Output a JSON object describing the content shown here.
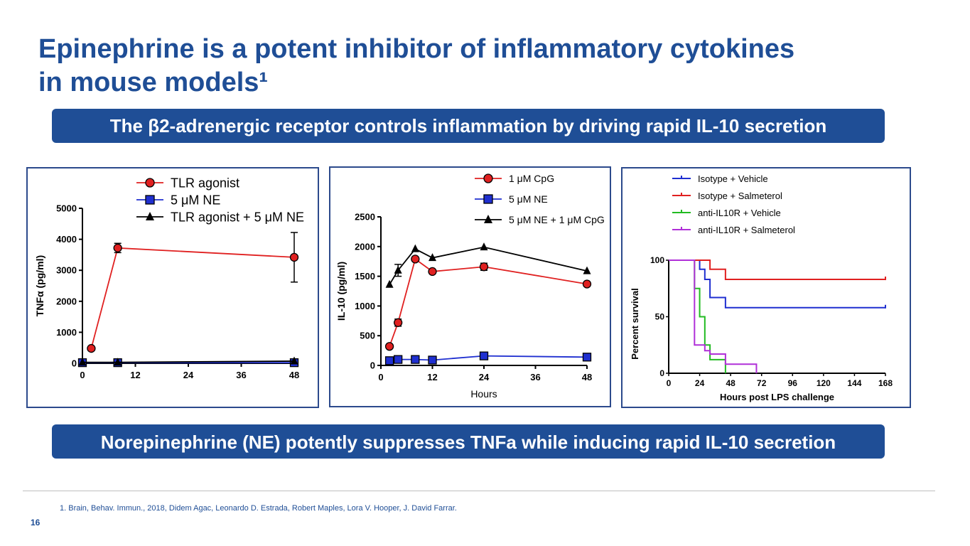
{
  "title_line1": "Epinephrine is a potent inhibitor of inflammatory cytokines",
  "title_line2": "in mouse models¹",
  "banner_top": "The β2-adrenergic receptor controls inflammation by driving rapid IL-10 secretion",
  "banner_bottom": "Norepinephrine (NE) potently suppresses TNFa while inducing rapid IL-10 secretion",
  "footnote": "1. Brain, Behav. Immun., 2018, Didem Agac, Leonardo D. Estrada, Robert Maples, Lora V. Hooper, J. David  Farrar.",
  "page_number": "16",
  "colors": {
    "brand": "#1f4e96",
    "red": "#e02020",
    "blue": "#1f2fd0",
    "black": "#000000",
    "green": "#22bb22",
    "purple": "#b030d8"
  },
  "chart_data": [
    {
      "type": "line",
      "title": "",
      "xlabel": "",
      "ylabel": "TNFα (pg/ml)",
      "xlim": [
        0,
        48
      ],
      "ylim": [
        0,
        5000
      ],
      "xticks": [
        0,
        12,
        24,
        36,
        48
      ],
      "yticks": [
        0,
        1000,
        2000,
        3000,
        4000,
        5000
      ],
      "legend": "top",
      "series": [
        {
          "name": "TLR agonist",
          "color": "#e02020",
          "marker": "circle",
          "x": [
            2,
            8,
            48
          ],
          "y": [
            480,
            3720,
            3420
          ],
          "err": [
            0,
            150,
            800
          ]
        },
        {
          "name": "5 μM NE",
          "color": "#1f2fd0",
          "marker": "square",
          "x": [
            0,
            8,
            48
          ],
          "y": [
            20,
            20,
            20
          ],
          "err": [
            0,
            0,
            0
          ]
        },
        {
          "name": "TLR agonist + 5 μM NE",
          "color": "#000000",
          "marker": "triangle",
          "x": [
            0,
            8,
            48
          ],
          "y": [
            30,
            30,
            70
          ],
          "err": [
            0,
            0,
            0
          ]
        }
      ]
    },
    {
      "type": "line",
      "title": "",
      "xlabel": "Hours",
      "ylabel": "IL-10 (pg/ml)",
      "xlim": [
        0,
        48
      ],
      "ylim": [
        0,
        2500
      ],
      "xticks": [
        0,
        12,
        24,
        36,
        48
      ],
      "yticks": [
        0,
        500,
        1000,
        1500,
        2000,
        2500
      ],
      "legend": "top-right",
      "series": [
        {
          "name": "1 μM CpG",
          "color": "#e02020",
          "marker": "circle",
          "x": [
            2,
            4,
            8,
            12,
            24,
            48
          ],
          "y": [
            320,
            720,
            1790,
            1580,
            1660,
            1370
          ],
          "err": [
            0,
            60,
            0,
            0,
            60,
            0
          ]
        },
        {
          "name": "5 μM NE",
          "color": "#1f2fd0",
          "marker": "square",
          "x": [
            2,
            4,
            8,
            12,
            24,
            48
          ],
          "y": [
            80,
            100,
            100,
            90,
            160,
            140
          ],
          "err": [
            0,
            0,
            0,
            0,
            0,
            0
          ]
        },
        {
          "name": "5 μM NE + 1 μM CpG",
          "color": "#000000",
          "marker": "triangle",
          "x": [
            2,
            4,
            8,
            12,
            24,
            48
          ],
          "y": [
            1360,
            1600,
            1960,
            1810,
            1990,
            1590
          ],
          "err": [
            0,
            100,
            0,
            0,
            0,
            0
          ]
        }
      ]
    },
    {
      "type": "line",
      "title": "",
      "xlabel": "Hours post LPS challenge",
      "ylabel": "Percent survival",
      "xlim": [
        0,
        168
      ],
      "ylim": [
        0,
        100
      ],
      "xticks": [
        0,
        24,
        48,
        72,
        96,
        120,
        144,
        168
      ],
      "yticks": [
        0,
        50,
        100
      ],
      "legend": "top",
      "series": [
        {
          "name": "Isotype + Vehicle",
          "color": "#1f2fd0",
          "x": [
            0,
            24,
            28,
            32,
            44,
            168
          ],
          "y": [
            100,
            92,
            83,
            67,
            58,
            58
          ]
        },
        {
          "name": "Isotype + Salmeterol",
          "color": "#e02020",
          "x": [
            0,
            32,
            44,
            168
          ],
          "y": [
            100,
            92,
            83,
            83
          ]
        },
        {
          "name": "anti-IL10R + Vehicle",
          "color": "#22bb22",
          "x": [
            0,
            20,
            24,
            28,
            32,
            44
          ],
          "y": [
            100,
            75,
            50,
            25,
            12,
            0
          ]
        },
        {
          "name": "anti-IL10R + Salmeterol",
          "color": "#b030d8",
          "x": [
            0,
            20,
            28,
            32,
            44,
            68
          ],
          "y": [
            100,
            25,
            20,
            17,
            8,
            0
          ]
        }
      ]
    }
  ]
}
